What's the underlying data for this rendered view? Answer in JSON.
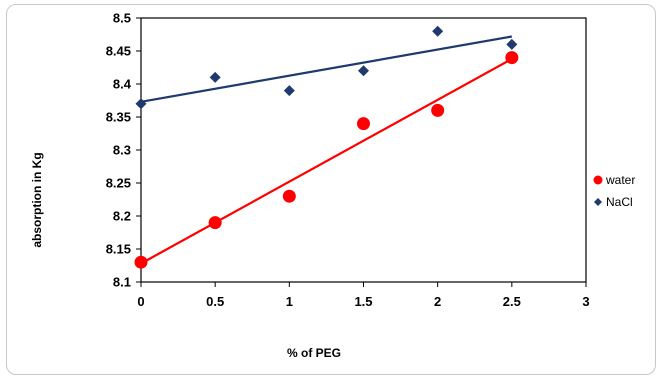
{
  "chart_data": {
    "type": "scatter",
    "title": "",
    "xlabel": "% of PEG",
    "ylabel": "absorption in Kg",
    "xlim": [
      0,
      3
    ],
    "ylim": [
      8.1,
      8.5
    ],
    "x_ticks": [
      "0",
      "0.5",
      "1",
      "1.5",
      "2",
      "2.5",
      "3"
    ],
    "y_ticks": [
      "8.1",
      "8.15",
      "8.2",
      "8.25",
      "8.3",
      "8.35",
      "8.4",
      "8.45",
      "8.5"
    ],
    "grid": false,
    "legend_position": "right",
    "series": [
      {
        "name": "water",
        "marker": "circle",
        "color": "#ff0000",
        "x": [
          0,
          0.5,
          1,
          1.5,
          2,
          2.5
        ],
        "y": [
          8.13,
          8.19,
          8.23,
          8.34,
          8.36,
          8.44
        ],
        "trendline": {
          "x": [
            0,
            2.5
          ],
          "y": [
            8.128,
            8.438
          ]
        }
      },
      {
        "name": "NaCl",
        "marker": "diamond",
        "color": "#1f3a6e",
        "x": [
          0,
          0.5,
          1,
          1.5,
          2,
          2.5
        ],
        "y": [
          8.37,
          8.41,
          8.39,
          8.42,
          8.48,
          8.46
        ],
        "trendline": {
          "x": [
            0,
            2.5
          ],
          "y": [
            8.373,
            8.472
          ]
        }
      }
    ]
  }
}
